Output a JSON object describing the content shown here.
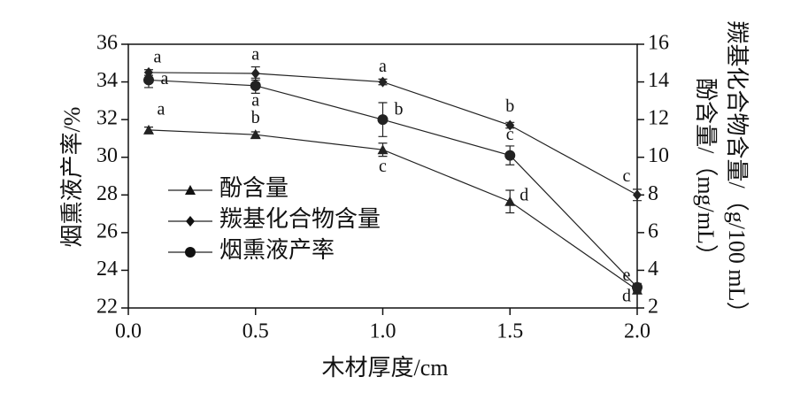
{
  "chart_data": {
    "type": "line",
    "x_label": "木材厚度/cm",
    "y_label": "烟熏液产率/%",
    "y2_labels": [
      "羰基化合物含量/（g/100 mL）",
      "酚含量/（mg/mL）"
    ],
    "x": [
      0.08,
      0.5,
      1.0,
      1.5,
      2.0
    ],
    "xlim": [
      0,
      2.0
    ],
    "xticks": [
      {
        "value": 0,
        "label": "0.0"
      },
      0.5,
      {
        "value": 1,
        "label": "1.0"
      },
      1.5,
      {
        "value": 2,
        "label": "2.0"
      }
    ],
    "ylim": [
      22,
      36
    ],
    "yticks": [
      22,
      24,
      26,
      28,
      30,
      32,
      34,
      36
    ],
    "y2lim": [
      2,
      16
    ],
    "y2ticks": [
      2,
      4,
      6,
      8,
      10,
      12,
      14,
      16
    ],
    "legend": "inside-left",
    "series": [
      {
        "name": "酚含量",
        "color": "#222222",
        "marker": "triangle",
        "axis": "y2",
        "values": [
          11.45,
          11.2,
          10.4,
          7.65,
          2.95
        ],
        "errors": [
          0.15,
          0.15,
          0.35,
          0.6,
          0.2
        ],
        "labels": [
          "a",
          "b",
          "c",
          "d",
          "d"
        ]
      },
      {
        "name": "羰基化合物含量",
        "color": "#222222",
        "marker": "diamond",
        "axis": "y2",
        "values": [
          14.5,
          14.45,
          14.0,
          11.7,
          8.0
        ],
        "errors": [
          0.15,
          0.35,
          0.15,
          0.15,
          0.3
        ],
        "labels": [
          "a",
          "a",
          "a",
          "b",
          "c"
        ]
      },
      {
        "name": "烟熏液产率",
        "color": "#222222",
        "marker": "circle",
        "axis": "y",
        "values": [
          34.1,
          33.8,
          32.0,
          30.1,
          23.1
        ],
        "errors": [
          0.4,
          0.4,
          0.9,
          0.5,
          0.2
        ],
        "labels": [
          "a",
          "a",
          "b",
          "c",
          "e"
        ]
      }
    ]
  }
}
